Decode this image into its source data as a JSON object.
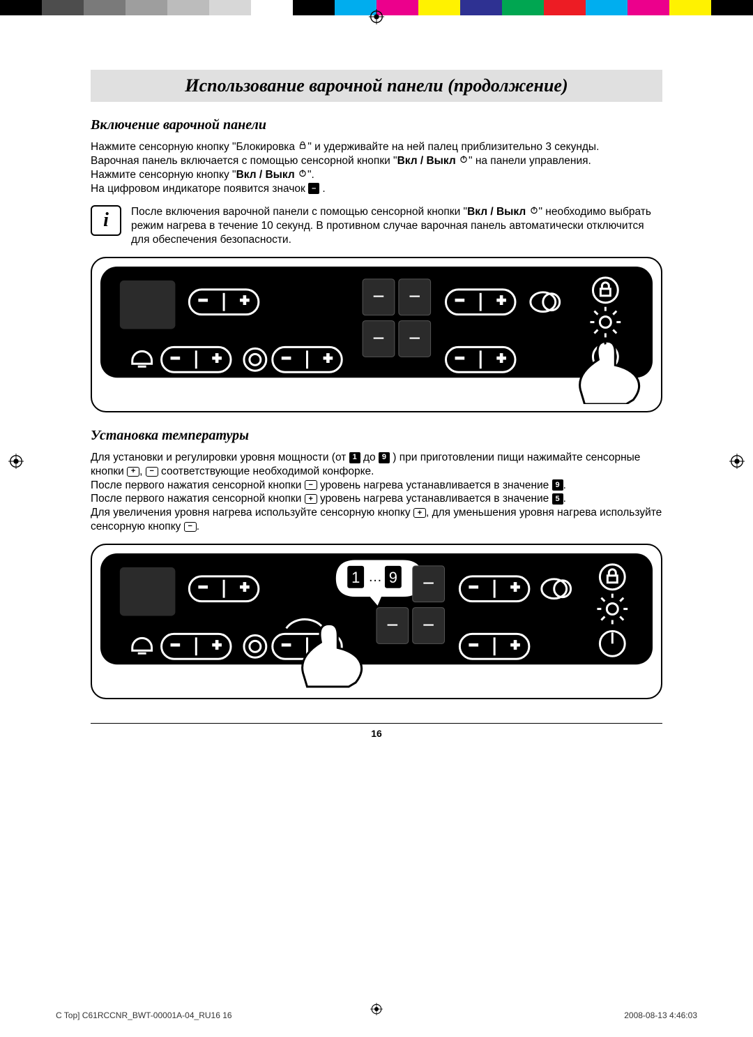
{
  "colorbar": [
    "#000000",
    "#4d4d4d",
    "#7a7a7a",
    "#9e9e9e",
    "#bcbcbc",
    "#d7d7d7",
    "#ffffff",
    "#000000",
    "#00adee",
    "#ec008c",
    "#fff200",
    "#2e3192",
    "#00a651",
    "#ed1c24",
    "#00aeef",
    "#ec008c",
    "#fff200",
    "#000000"
  ],
  "title": "Использование варочной панели (продолжение)",
  "section1_title": "Включение варочной панели",
  "p1a": "Нажмите сенсорную кнопку \"Блокировка ",
  "p1b": "\" и удерживайте на ней палец приблизительно 3 секунды.",
  "p2a": "Варочная панель включается с помощью сенсорной кнопки \"",
  "p2b": "Вкл / Выкл ",
  "p2c": "\" на панели управления.",
  "p3a": "Нажмите сенсорную кнопку \"",
  "p3b": "Вкл / Выкл ",
  "p3c": "\".",
  "p4a": "На цифровом индикаторе появится значок ",
  "p4b": " .",
  "info_a": "После включения варочной панели с помощью сенсорной кнопки \"",
  "info_b": "Вкл / Выкл ",
  "info_c": "\" необходимо выбрать режим нагрева в течение 10 секунд. В противном случае варочная панель автоматически отключится для обеспечения безопасности.",
  "section2_title": "Установка температуры",
  "t1a": "Для установки и регулировки уровня мощности (от ",
  "t1b": " до ",
  "t1c": " ) при приготовлении пищи нажимайте сенсорные кнопки ",
  "t1d": ", ",
  "t1e": " соответствующие необходимой конфорке.",
  "t2a": "После первого нажатия сенсорной кнопки ",
  "t2b": " уровень нагрева устанавливается в значение ",
  "t2c": ".",
  "t3a": "После первого нажатия сенсорной кнопки ",
  "t3b": " уровень нагрева устанавливается в значение ",
  "t3c": ".",
  "t4a": "Для увеличения уровня нагрева используйте сенсорную кнопку ",
  "t4b": ", для уменьшения уровня нагрева используйте сенсорную кнопку ",
  "t4c": ".",
  "page_num": "16",
  "footer_left": "C Top] C61RCCNR_BWT-00001A-04_RU16   16",
  "footer_right": "2008-08-13    4:46:03",
  "digit1": "1",
  "digit9": "9",
  "digit5": "5",
  "digit_dash": "–",
  "ellipsis": "…"
}
